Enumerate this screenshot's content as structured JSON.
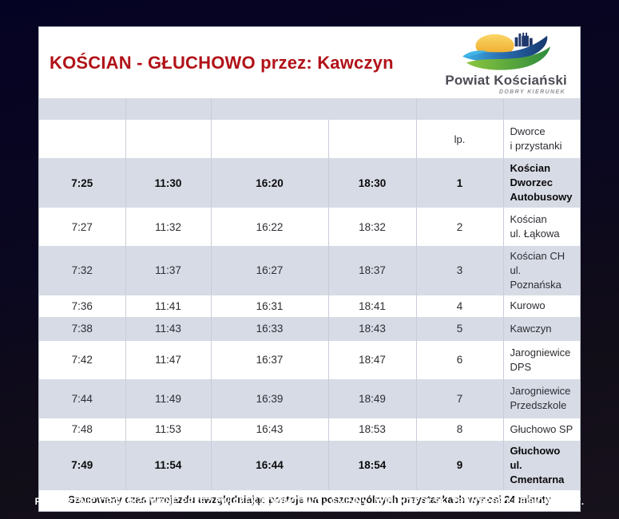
{
  "page": {
    "title": "KOŚCIAN - GŁUCHOWO przez: Kawczyn",
    "accent_color": "#b11218",
    "row_shade_color": "#d7dbe5"
  },
  "logo": {
    "name": "Powiat Kościański",
    "tagline": "DOBRY KIERUNEK",
    "icon": "powiat-koscianski-emblem",
    "colors": {
      "sun": "#f2b32d",
      "blue_wave": "#1d4f96",
      "cyan_accent": "#3fb4e6",
      "green_wave": "#3f9c35",
      "skyline": "#20386b"
    }
  },
  "table": {
    "header": {
      "lp": "lp.",
      "stops": "Dworce\ni przystanki"
    },
    "rows": [
      {
        "times": [
          "7:25",
          "11:30",
          "16:20",
          "18:30"
        ],
        "lp": "1",
        "stop": "Kościan\nDworzec\nAutobusowy",
        "bold": true
      },
      {
        "times": [
          "7:27",
          "11:32",
          "16:22",
          "18:32"
        ],
        "lp": "2",
        "stop": "Kościan\nul. Łąkowa",
        "bold": false
      },
      {
        "times": [
          "7:32",
          "11:37",
          "16:27",
          "18:37"
        ],
        "lp": "3",
        "stop": "Kościan CH\nul. Poznańska",
        "bold": false
      },
      {
        "times": [
          "7:36",
          "11:41",
          "16:31",
          "18:41"
        ],
        "lp": "4",
        "stop": "Kurowo",
        "bold": false
      },
      {
        "times": [
          "7:38",
          "11:43",
          "16:33",
          "18:43"
        ],
        "lp": "5",
        "stop": "Kawczyn",
        "bold": false
      },
      {
        "times": [
          "7:42",
          "11:47",
          "16:37",
          "18:47"
        ],
        "lp": "6",
        "stop": "Jarogniewice\nDPS",
        "bold": false
      },
      {
        "times": [
          "7:44",
          "11:49",
          "16:39",
          "18:49"
        ],
        "lp": "7",
        "stop": "Jarogniewice\nPrzedszkole",
        "bold": false
      },
      {
        "times": [
          "7:48",
          "11:53",
          "16:43",
          "18:53"
        ],
        "lp": "8",
        "stop": "Głuchowo SP",
        "bold": false
      },
      {
        "times": [
          "7:49",
          "11:54",
          "16:44",
          "18:54"
        ],
        "lp": "9",
        "stop": "Głuchowo\nul. Cmentarna",
        "bold": true
      }
    ]
  },
  "note": "Szacowany czas przejazdu uwzględniając postoje na poszczególnych przystankach wynosi 24 minuty",
  "footer": "POŁĄCZENIE ORGANIZOWANE PRZEZ ZWIĄZEK POWIATOWO - GMINNY „WIELKOPOLSKI TRANSPORT REGIONALNY”."
}
